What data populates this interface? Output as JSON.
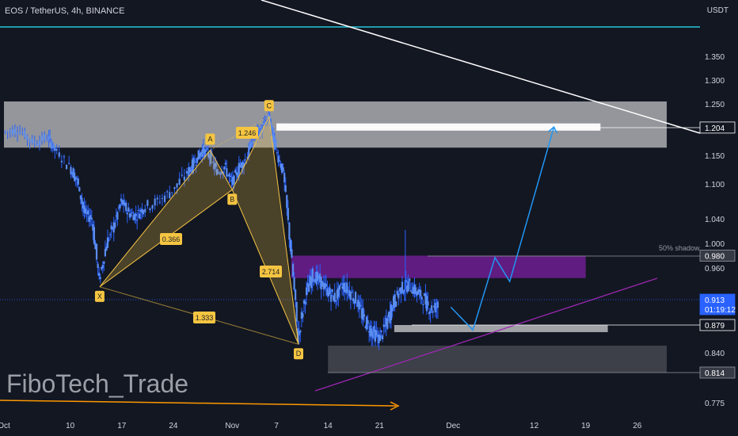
{
  "header": {
    "title": "EOS / TetherUS, 4h, BINANCE",
    "currency": "USDT"
  },
  "watermark": "FiboTech_Trade",
  "annotation_shadow": "50% shadow",
  "colors": {
    "bg": "#131722",
    "candle": "#2962ff",
    "zone": "#ffffff",
    "purple_zone": "#7b1fa2",
    "harmonic": "#f5c542",
    "trendline_purple": "#9c27b0",
    "projection": "#2196f3",
    "horizontal_cyan": "#26c6da",
    "orange_arrow": "#ff9800"
  },
  "chart_data": {
    "type": "candlestick",
    "symbol": "EOS / TetherUS",
    "interval": "4h",
    "exchange": "BINANCE",
    "y_axis": {
      "ticks": [
        "1.350",
        "1.300",
        "1.250",
        "1.150",
        "1.100",
        "1.040",
        "1.000",
        "0.960",
        "0.840",
        "0.775"
      ],
      "tick_values": [
        1.35,
        1.3,
        1.25,
        1.15,
        1.1,
        1.04,
        1.0,
        0.96,
        0.84,
        0.775
      ],
      "price_tags": [
        {
          "label": "1.204",
          "value": 1.204,
          "style": "outline"
        },
        {
          "label": "0.980",
          "value": 0.98,
          "style": "dark"
        },
        {
          "label": "0.913",
          "sub": "01:19:12",
          "value": 0.913,
          "style": "current"
        },
        {
          "label": "0.879",
          "value": 0.879,
          "style": "outline"
        },
        {
          "label": "0.814",
          "value": 0.814,
          "style": "dark"
        }
      ]
    },
    "x_axis": {
      "ticks": [
        "Oct",
        "10",
        "17",
        "24",
        "Nov",
        "7",
        "14",
        "21",
        "Dec",
        "12",
        "19",
        "26"
      ],
      "tick_days": [
        0,
        9,
        16,
        23,
        31,
        37,
        44,
        51,
        61,
        72,
        79,
        86
      ]
    },
    "harmonic_pattern": {
      "points": [
        {
          "label": "X",
          "day": 13,
          "price": 0.932
        },
        {
          "label": "A",
          "day": 28,
          "price": 1.16
        },
        {
          "label": "B",
          "day": 31,
          "price": 1.09
        },
        {
          "label": "C",
          "day": 36,
          "price": 1.225
        },
        {
          "label": "D",
          "day": 40,
          "price": 0.852
        }
      ],
      "ratios": [
        "0.366",
        "1.246",
        "2.714",
        "1.333"
      ]
    },
    "price_path": [
      [
        0,
        1.195
      ],
      [
        2,
        1.2
      ],
      [
        4,
        1.175
      ],
      [
        6,
        1.185
      ],
      [
        7,
        1.16
      ],
      [
        9,
        1.13
      ],
      [
        10,
        1.105
      ],
      [
        11,
        1.05
      ],
      [
        12,
        1.04
      ],
      [
        13,
        0.94
      ],
      [
        14,
        1.0
      ],
      [
        15,
        1.03
      ],
      [
        16,
        1.07
      ],
      [
        17,
        1.05
      ],
      [
        18,
        1.045
      ],
      [
        19,
        1.06
      ],
      [
        21,
        1.07
      ],
      [
        23,
        1.09
      ],
      [
        25,
        1.12
      ],
      [
        26,
        1.14
      ],
      [
        27,
        1.16
      ],
      [
        28,
        1.15
      ],
      [
        29,
        1.12
      ],
      [
        30,
        1.13
      ],
      [
        31,
        1.1
      ],
      [
        32,
        1.13
      ],
      [
        33,
        1.145
      ],
      [
        34,
        1.19
      ],
      [
        35,
        1.2
      ],
      [
        36,
        1.225
      ],
      [
        37,
        1.16
      ],
      [
        38,
        1.12
      ],
      [
        39,
        0.99
      ],
      [
        40,
        0.86
      ],
      [
        41,
        0.92
      ],
      [
        42,
        0.95
      ],
      [
        43,
        0.94
      ],
      [
        44,
        0.925
      ],
      [
        45,
        0.915
      ],
      [
        46,
        0.935
      ],
      [
        47,
        0.925
      ],
      [
        48,
        0.91
      ],
      [
        49,
        0.885
      ],
      [
        50,
        0.87
      ],
      [
        51,
        0.86
      ],
      [
        52,
        0.88
      ],
      [
        53,
        0.91
      ],
      [
        54,
        0.93
      ],
      [
        55,
        0.935
      ],
      [
        56,
        0.925
      ],
      [
        57,
        0.915
      ],
      [
        58,
        0.9
      ],
      [
        59,
        0.905
      ]
    ],
    "zones": [
      {
        "name": "upper-supply-zone",
        "day_start": 0,
        "day_end": 90,
        "price_top": 1.255,
        "price_bottom": 1.165,
        "color": "#ffffff",
        "opacity": 0.55
      },
      {
        "name": "target-zone",
        "day_start": 37,
        "day_end": 81,
        "price_top": 1.212,
        "price_bottom": 1.198,
        "color": "#ffffff",
        "opacity": 0.95
      },
      {
        "name": "purple-zone",
        "day_start": 39,
        "day_end": 79,
        "price_top": 0.98,
        "price_bottom": 0.945,
        "color": "#7b1fa2",
        "opacity": 0.75
      },
      {
        "name": "support-zone",
        "day_start": 53,
        "day_end": 82,
        "price_top": 0.879,
        "price_bottom": 0.869,
        "color": "#ffffff",
        "opacity": 0.6
      },
      {
        "name": "lower-demand-zone",
        "day_start": 44,
        "day_end": 90,
        "price_top": 0.85,
        "price_bottom": 0.814,
        "color": "#ffffff",
        "opacity": 0.18
      }
    ],
    "projection_path": [
      [
        61,
        0.903
      ],
      [
        64,
        0.872
      ],
      [
        67,
        0.977
      ],
      [
        69,
        0.94
      ],
      [
        75,
        1.205
      ]
    ]
  }
}
